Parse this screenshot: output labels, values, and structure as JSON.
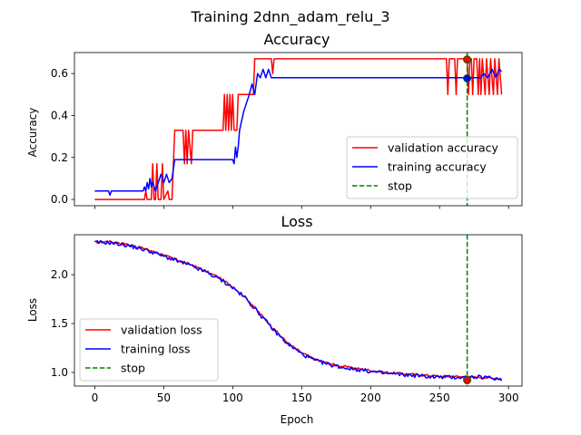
{
  "figure": {
    "suptitle": "Training 2dnn_adam_relu_3"
  },
  "chart_data": [
    {
      "type": "line",
      "title": "Accuracy",
      "xlabel": "",
      "ylabel": "Accuracy",
      "xlim": [
        -14.75,
        309.75
      ],
      "ylim": [
        -0.03,
        0.7
      ],
      "xticks": [
        0,
        50,
        100,
        150,
        200,
        250,
        300
      ],
      "show_xticklabels": false,
      "yticks": [
        "0.0",
        "0.2",
        "0.4",
        "0.6"
      ],
      "grid": false,
      "legend_position": "lower-right",
      "series": [
        {
          "name": "validation accuracy",
          "color": "#ff0000",
          "style": "solid",
          "points": [
            [
              0,
              0
            ],
            [
              20,
              0
            ],
            [
              36,
              0
            ],
            [
              37,
              0.04
            ],
            [
              38,
              0
            ],
            [
              41,
              0
            ],
            [
              42,
              0.17
            ],
            [
              43,
              0
            ],
            [
              44,
              0
            ],
            [
              45,
              0.17
            ],
            [
              46,
              0
            ],
            [
              48,
              0
            ],
            [
              49,
              0.17
            ],
            [
              50,
              0
            ],
            [
              53,
              0.04
            ],
            [
              54,
              0
            ],
            [
              56,
              0
            ],
            [
              57,
              0.17
            ],
            [
              58,
              0.33
            ],
            [
              64,
              0.33
            ],
            [
              65,
              0.17
            ],
            [
              66,
              0.33
            ],
            [
              67,
              0.17
            ],
            [
              68,
              0.33
            ],
            [
              70,
              0.17
            ],
            [
              71,
              0.33
            ],
            [
              93,
              0.33
            ],
            [
              94,
              0.5
            ],
            [
              95,
              0.33
            ],
            [
              96,
              0.5
            ],
            [
              97,
              0.33
            ],
            [
              98,
              0.5
            ],
            [
              99,
              0.33
            ],
            [
              100,
              0.5
            ],
            [
              101,
              0.33
            ],
            [
              103,
              0.33
            ],
            [
              104,
              0.5
            ],
            [
              115,
              0.5
            ],
            [
              116,
              0.67
            ],
            [
              128,
              0.67
            ],
            [
              129,
              0.6
            ],
            [
              130,
              0.67
            ],
            [
              255,
              0.67
            ],
            [
              256,
              0.5
            ],
            [
              257,
              0.67
            ],
            [
              261,
              0.67
            ],
            [
              262,
              0.5
            ],
            [
              263,
              0.67
            ],
            [
              270,
              0.67
            ],
            [
              271,
              0.5
            ],
            [
              272,
              0.67
            ],
            [
              273,
              0.67
            ],
            [
              274,
              0.5
            ],
            [
              275,
              0.67
            ],
            [
              277,
              0.67
            ],
            [
              278,
              0.5
            ],
            [
              279,
              0.67
            ],
            [
              280,
              0.5
            ],
            [
              281,
              0.67
            ],
            [
              283,
              0.5
            ],
            [
              284,
              0.67
            ],
            [
              286,
              0.5
            ],
            [
              287,
              0.67
            ],
            [
              289,
              0.5
            ],
            [
              290,
              0.67
            ],
            [
              292,
              0.5
            ],
            [
              293,
              0.67
            ],
            [
              295,
              0.5
            ]
          ]
        },
        {
          "name": "training accuracy",
          "color": "#0000ff",
          "style": "solid",
          "points": [
            [
              0,
              0.04
            ],
            [
              10,
              0.04
            ],
            [
              11,
              0.02
            ],
            [
              12,
              0.04
            ],
            [
              35,
              0.04
            ],
            [
              36,
              0.06
            ],
            [
              37,
              0.04
            ],
            [
              38,
              0.08
            ],
            [
              39,
              0.05
            ],
            [
              40,
              0.1
            ],
            [
              41,
              0.06
            ],
            [
              42,
              0.08
            ],
            [
              44,
              0.04
            ],
            [
              46,
              0.08
            ],
            [
              48,
              0.12
            ],
            [
              50,
              0.08
            ],
            [
              52,
              0.12
            ],
            [
              54,
              0.08
            ],
            [
              56,
              0.1
            ],
            [
              58,
              0.19
            ],
            [
              70,
              0.19
            ],
            [
              72,
              0.19
            ],
            [
              100,
              0.19
            ],
            [
              101,
              0.17
            ],
            [
              102,
              0.25
            ],
            [
              103,
              0.2
            ],
            [
              104,
              0.25
            ],
            [
              105,
              0.33
            ],
            [
              108,
              0.42
            ],
            [
              112,
              0.5
            ],
            [
              114,
              0.55
            ],
            [
              116,
              0.5
            ],
            [
              118,
              0.6
            ],
            [
              120,
              0.58
            ],
            [
              122,
              0.62
            ],
            [
              124,
              0.58
            ],
            [
              126,
              0.62
            ],
            [
              128,
              0.58
            ],
            [
              130,
              0.58
            ],
            [
              270,
              0.58
            ],
            [
              272,
              0.58
            ],
            [
              280,
              0.58
            ],
            [
              282,
              0.6
            ],
            [
              285,
              0.58
            ],
            [
              288,
              0.62
            ],
            [
              291,
              0.58
            ],
            [
              293,
              0.62
            ],
            [
              295,
              0.61
            ]
          ]
        },
        {
          "name": "stop",
          "color": "#008000",
          "style": "dashed",
          "x": 270
        }
      ],
      "markers": [
        {
          "x": 270,
          "y": 0.667,
          "color": "#ff0000"
        },
        {
          "x": 270,
          "y": 0.577,
          "color": "#0000ff"
        }
      ]
    },
    {
      "type": "line",
      "title": "Loss",
      "xlabel": "Epoch",
      "ylabel": "Loss",
      "xlim": [
        -14.75,
        309.75
      ],
      "ylim": [
        0.86,
        2.41
      ],
      "xticks": [
        0,
        50,
        100,
        150,
        200,
        250,
        300
      ],
      "show_xticklabels": true,
      "yticks": [
        "1.0",
        "1.5",
        "2.0"
      ],
      "grid": false,
      "legend_position": "lower-left",
      "series": [
        {
          "name": "validation loss",
          "color": "#ff0000",
          "style": "solid",
          "curve": [
            [
              0,
              2.33
            ],
            [
              10,
              2.34
            ],
            [
              20,
              2.32
            ],
            [
              30,
              2.29
            ],
            [
              40,
              2.25
            ],
            [
              50,
              2.2
            ],
            [
              60,
              2.15
            ],
            [
              70,
              2.1
            ],
            [
              80,
              2.04
            ],
            [
              90,
              1.97
            ],
            [
              100,
              1.88
            ],
            [
              110,
              1.76
            ],
            [
              120,
              1.6
            ],
            [
              130,
              1.44
            ],
            [
              140,
              1.3
            ],
            [
              150,
              1.2
            ],
            [
              160,
              1.13
            ],
            [
              170,
              1.09
            ],
            [
              180,
              1.06
            ],
            [
              190,
              1.04
            ],
            [
              200,
              1.02
            ],
            [
              210,
              1.0
            ],
            [
              220,
              0.99
            ],
            [
              230,
              0.98
            ],
            [
              240,
              0.97
            ],
            [
              250,
              0.96
            ],
            [
              260,
              0.96
            ],
            [
              270,
              0.95
            ],
            [
              280,
              0.95
            ],
            [
              290,
              0.94
            ],
            [
              295,
              0.93
            ]
          ],
          "noise": 0.012
        },
        {
          "name": "training loss",
          "color": "#0000ff",
          "style": "solid",
          "curve": [
            [
              0,
              2.33
            ],
            [
              10,
              2.33
            ],
            [
              20,
              2.31
            ],
            [
              30,
              2.28
            ],
            [
              40,
              2.24
            ],
            [
              50,
              2.19
            ],
            [
              60,
              2.14
            ],
            [
              70,
              2.09
            ],
            [
              80,
              2.03
            ],
            [
              90,
              1.96
            ],
            [
              100,
              1.87
            ],
            [
              110,
              1.75
            ],
            [
              120,
              1.59
            ],
            [
              130,
              1.43
            ],
            [
              140,
              1.29
            ],
            [
              150,
              1.19
            ],
            [
              160,
              1.12
            ],
            [
              170,
              1.08
            ],
            [
              180,
              1.05
            ],
            [
              190,
              1.03
            ],
            [
              200,
              1.01
            ],
            [
              210,
              0.99
            ],
            [
              220,
              0.98
            ],
            [
              230,
              0.97
            ],
            [
              240,
              0.96
            ],
            [
              250,
              0.95
            ],
            [
              260,
              0.95
            ],
            [
              270,
              0.95
            ],
            [
              280,
              0.95
            ],
            [
              290,
              0.94
            ],
            [
              295,
              0.93
            ]
          ],
          "noise": 0.02
        },
        {
          "name": "stop",
          "color": "#008000",
          "style": "dashed",
          "x": 270
        }
      ],
      "markers": [
        {
          "x": 270,
          "y": 0.92,
          "color": "#ff0000"
        }
      ]
    }
  ]
}
